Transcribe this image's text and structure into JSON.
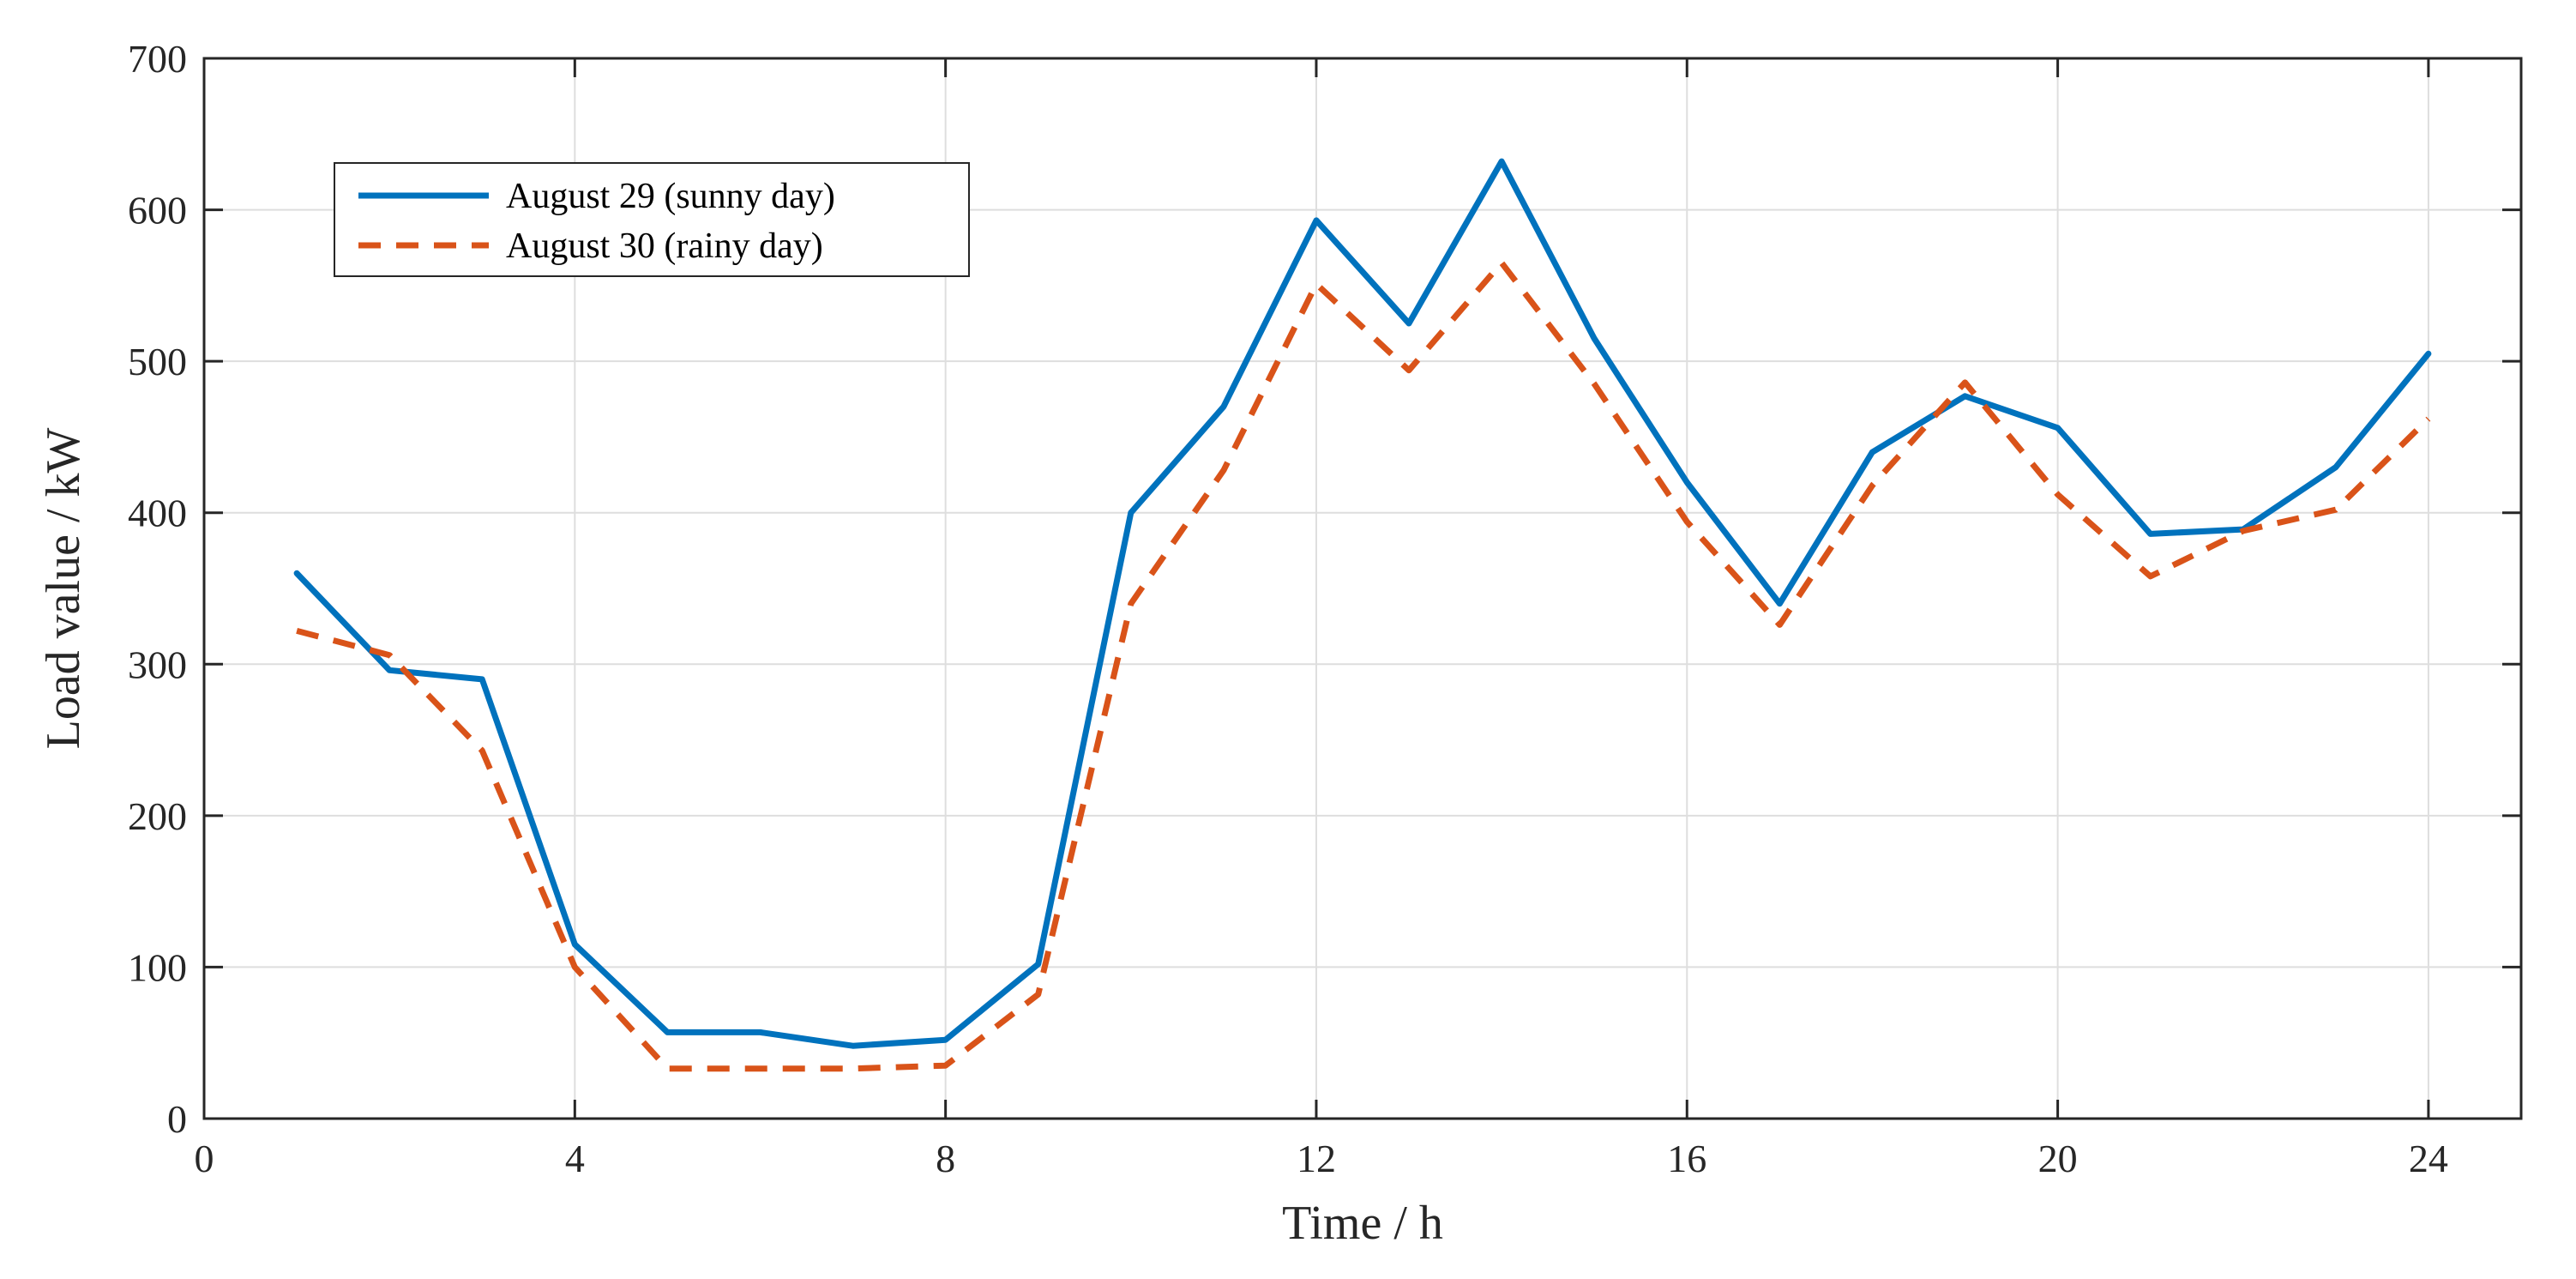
{
  "chart_data": {
    "type": "line",
    "title": "",
    "xlabel": "Time / h",
    "ylabel": "Load value / kW",
    "xlim": [
      0,
      25
    ],
    "ylim": [
      0,
      700
    ],
    "xticks": [
      0,
      4,
      8,
      12,
      16,
      20,
      24
    ],
    "yticks": [
      0,
      100,
      200,
      300,
      400,
      500,
      600,
      700
    ],
    "xtick_labels": [
      "0",
      "4",
      "8",
      "12",
      "16",
      "20",
      "24"
    ],
    "ytick_labels": [
      "0",
      "100",
      "200",
      "300",
      "400",
      "500",
      "600",
      "700"
    ],
    "grid": true,
    "legend_position": "top-left",
    "x": [
      1,
      2,
      3,
      4,
      5,
      6,
      7,
      8,
      9,
      10,
      11,
      12,
      13,
      14,
      15,
      16,
      17,
      18,
      19,
      20,
      21,
      22,
      23,
      24
    ],
    "series": [
      {
        "name": "August 29 (sunny day)",
        "color": "#0072BD",
        "style": "solid",
        "values": [
          360,
          296,
          290,
          115,
          57,
          57,
          48,
          52,
          102,
          400,
          470,
          593,
          525,
          632,
          515,
          420,
          340,
          440,
          477,
          456,
          386,
          389,
          430,
          505
        ]
      },
      {
        "name": "August 30 (rainy day)",
        "color": "#D95319",
        "style": "dashed",
        "values": [
          322,
          306,
          243,
          100,
          33,
          33,
          33,
          35,
          82,
          340,
          428,
          551,
          494,
          565,
          485,
          394,
          326,
          418,
          486,
          412,
          358,
          388,
          402,
          462
        ]
      }
    ]
  }
}
